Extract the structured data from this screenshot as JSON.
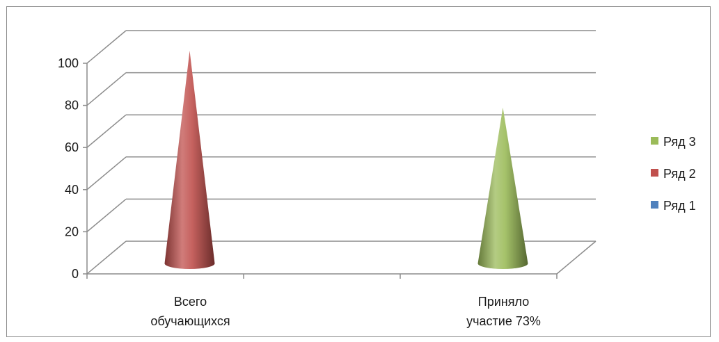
{
  "chart_data": {
    "type": "bar",
    "shape": "cone-3d",
    "categories": [
      "Всего обучающихся",
      "",
      "Приняло участие 73%"
    ],
    "category_lines": [
      [
        "Всего",
        "обучающихся"
      ],
      [],
      [
        "Приняло",
        "участие 73%"
      ]
    ],
    "series": [
      {
        "name": "Ряд 1",
        "values": [
          0,
          0,
          0
        ],
        "color": "#4f81bd"
      },
      {
        "name": "Ряд 2",
        "values": [
          100,
          0,
          0
        ],
        "color": "#c0504d"
      },
      {
        "name": "Ряд 3",
        "values": [
          0,
          0,
          73
        ],
        "color": "#9bbb59"
      }
    ],
    "ylim": [
      0,
      100
    ],
    "yticks": [
      0,
      20,
      40,
      60,
      80,
      100
    ],
    "grid": true,
    "legend": "right"
  }
}
